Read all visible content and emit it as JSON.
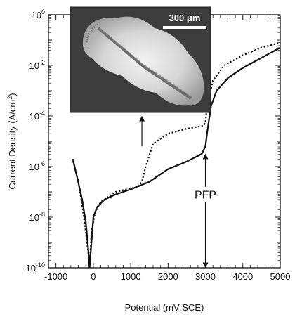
{
  "chart_data": {
    "type": "line",
    "title": "",
    "xlabel": "Potential (mV SCE)",
    "ylabel_base": "Current Density (A/cm",
    "ylabel_sup": "2",
    "ylabel_end": ")",
    "xlim": [
      -1200,
      5000
    ],
    "ylim_log10": [
      -10,
      0
    ],
    "y_scale": "log",
    "x_ticks": [
      -1000,
      0,
      1000,
      2000,
      3000,
      4000,
      5000
    ],
    "x_tick_labels": [
      "-1000",
      "0",
      "1000",
      "2000",
      "3000",
      "4000",
      "5000"
    ],
    "y_ticks_exp": [
      0,
      -2,
      -4,
      -6,
      -8,
      -10
    ],
    "y_tick_labels": [
      {
        "base": "10",
        "exp": "0"
      },
      {
        "base": "10",
        "exp": "-2"
      },
      {
        "base": "10",
        "exp": "-4"
      },
      {
        "base": "10",
        "exp": "-6"
      },
      {
        "base": "10",
        "exp": "-8"
      },
      {
        "base": "10",
        "exp": "-10"
      }
    ],
    "series": [
      {
        "style": "solid",
        "x": [
          -550,
          -420,
          -300,
          -200,
          -140,
          -100,
          -80,
          0,
          100,
          300,
          600,
          1000,
          1500,
          2000,
          2500,
          2900,
          3000,
          3050,
          3150,
          3300,
          3600,
          4000,
          4500,
          5000
        ],
        "y_log10": [
          -5.7,
          -6.5,
          -7.3,
          -8.2,
          -9.2,
          -10,
          -9.6,
          -8.0,
          -7.6,
          -7.3,
          -7.1,
          -6.9,
          -6.6,
          -6.1,
          -5.8,
          -5.5,
          -5.2,
          -4.6,
          -3.6,
          -3.0,
          -2.5,
          -2.1,
          -1.7,
          -1.3
        ]
      },
      {
        "style": "dotted",
        "x": [
          -550,
          -400,
          -300,
          -200,
          -120,
          -100,
          -50,
          50,
          200,
          400,
          600,
          900,
          1200,
          1300,
          1400,
          1600,
          2000,
          2500,
          2900,
          3000,
          3050,
          3200,
          3500,
          4000,
          4500,
          5000
        ],
        "y_log10": [
          -5.7,
          -6.6,
          -7.5,
          -8.6,
          -9.6,
          -10,
          -8.6,
          -7.8,
          -7.4,
          -7.2,
          -7.0,
          -6.9,
          -6.8,
          -6.6,
          -6.0,
          -5.1,
          -4.7,
          -4.5,
          -4.4,
          -4.3,
          -3.5,
          -2.6,
          -2.0,
          -1.6,
          -1.3,
          -1.1
        ]
      }
    ],
    "annotations": [
      {
        "text": "PFP",
        "x": 3000,
        "y_log10": -7.1
      },
      {
        "type": "arrow",
        "x": 3000,
        "from_y_log10": -6.8,
        "to_y_log10": -5.6
      },
      {
        "type": "arrow",
        "x": 3000,
        "from_y_log10": -7.4,
        "to_y_log10": -9.9
      },
      {
        "type": "arrow",
        "x": 1300,
        "from_y_log10": -5.2,
        "to_y_log10": -4.1
      }
    ]
  },
  "inset": {
    "scale_bar_label": "300  μm"
  }
}
